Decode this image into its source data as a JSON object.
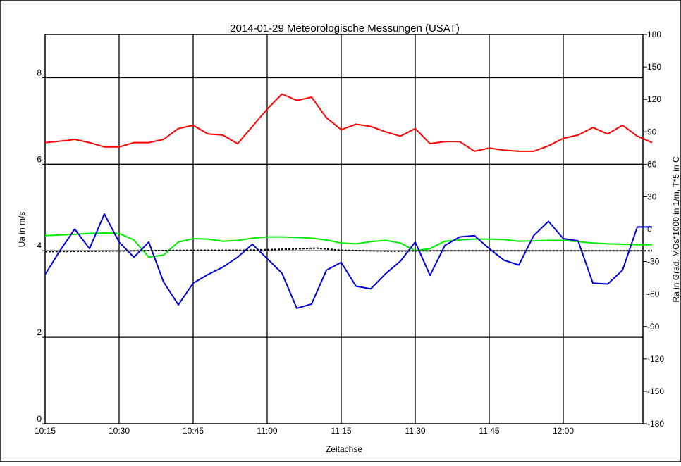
{
  "chart_data": {
    "type": "line",
    "title": "2014-01-29 Meteorologische Messungen (USAT)",
    "xlabel": "Zeitachse",
    "ylabel_left": "Ua in m/s",
    "ylabel_right": "Ra in Grad, MOs*1000 in 1/m, T*5 in C",
    "x_start": "10:15",
    "x_end": "12:15",
    "x_range_minutes": [
      0,
      120
    ],
    "xticks": [
      "10:15",
      "10:30",
      "10:45",
      "11:00",
      "11:15",
      "11:30",
      "11:45",
      "12:00"
    ],
    "ylim_left": [
      0,
      9
    ],
    "yticks_left": [
      0,
      2,
      4,
      6,
      8
    ],
    "ylim_right": [
      -180,
      180
    ],
    "yticks_right": [
      -180,
      -150,
      -120,
      -90,
      -60,
      -30,
      0,
      30,
      60,
      90,
      120,
      150,
      180
    ],
    "grid": true,
    "series": [
      {
        "axis": "right",
        "color": "#ff0000",
        "x": [
          0,
          4.5,
          6,
          9,
          12,
          15,
          18,
          21,
          24,
          27,
          30,
          33,
          36,
          39,
          42,
          45,
          48,
          51,
          54,
          57,
          60,
          63,
          66,
          69,
          72,
          75,
          78,
          81,
          84,
          87,
          90,
          93,
          96,
          99,
          102,
          105,
          108,
          111,
          114,
          117,
          120,
          123
        ],
        "y": [
          80,
          82,
          83,
          80,
          76,
          76,
          80,
          80,
          83,
          93,
          96,
          88,
          87,
          79,
          95,
          111,
          125,
          119,
          122,
          103,
          92,
          97,
          95,
          90,
          86,
          93,
          79,
          81,
          81,
          72,
          75,
          73,
          72,
          72,
          77,
          84,
          87,
          94,
          88,
          96,
          86,
          80
        ]
      },
      {
        "axis": "left",
        "color": "#00ee00",
        "x": [
          0,
          6,
          9,
          12,
          15,
          18,
          21,
          24,
          27,
          30,
          33,
          36,
          39,
          42,
          45,
          48,
          51,
          54,
          57,
          60,
          63,
          66,
          69,
          72,
          75,
          78,
          81,
          84,
          87,
          90,
          93,
          96,
          99,
          102,
          105,
          108,
          111,
          114,
          117,
          120,
          123
        ],
        "y": [
          4.35,
          4.38,
          4.4,
          4.41,
          4.4,
          4.25,
          3.85,
          3.9,
          4.2,
          4.28,
          4.27,
          4.22,
          4.24,
          4.29,
          4.32,
          4.32,
          4.31,
          4.29,
          4.25,
          4.18,
          4.16,
          4.21,
          4.24,
          4.18,
          4.0,
          4.05,
          4.22,
          4.25,
          4.27,
          4.27,
          4.26,
          4.22,
          4.23,
          4.24,
          4.24,
          4.21,
          4.18,
          4.16,
          4.15,
          4.14,
          4.14
        ]
      },
      {
        "axis": "left",
        "color": "#0000dd",
        "x": [
          0,
          3,
          6,
          9,
          12,
          15,
          18,
          21,
          24,
          27,
          30,
          33,
          36,
          39,
          42,
          45,
          48,
          51,
          54,
          57,
          60,
          63,
          66,
          69,
          72,
          75,
          78,
          81,
          84,
          87,
          90,
          93,
          96,
          99,
          102,
          105,
          108,
          111,
          114,
          117,
          120,
          123
        ],
        "y": [
          3.45,
          4.0,
          4.5,
          4.05,
          4.85,
          4.2,
          3.85,
          4.2,
          3.28,
          2.75,
          3.25,
          3.45,
          3.62,
          3.85,
          4.15,
          3.82,
          3.48,
          2.67,
          2.77,
          3.55,
          3.73,
          3.18,
          3.12,
          3.47,
          3.76,
          4.2,
          3.43,
          4.12,
          4.32,
          4.35,
          4.05,
          3.78,
          3.67,
          4.35,
          4.68,
          4.28,
          4.23,
          3.25,
          3.23,
          3.55,
          4.55,
          4.55
        ]
      },
      {
        "axis": "left",
        "color": "#000000",
        "dashed": true,
        "x": [
          0,
          10,
          20,
          30,
          40,
          50,
          55,
          60,
          70,
          80,
          90,
          100,
          110,
          120,
          123
        ],
        "y": [
          3.98,
          3.99,
          4.0,
          4.01,
          4.01,
          4.04,
          4.06,
          4.01,
          3.99,
          4.0,
          4.0,
          4.0,
          4.0,
          4.0,
          4.0
        ]
      }
    ]
  }
}
